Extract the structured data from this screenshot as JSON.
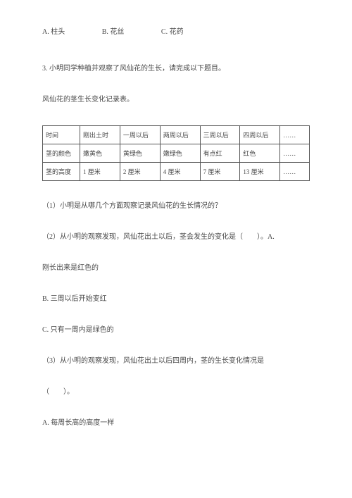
{
  "q2_options": {
    "a": "A. 柱头",
    "b": "B. 花丝",
    "c": "C. 花药"
  },
  "q3": {
    "intro": "3. 小明同学种植并观察了风仙花的生长，请完成以下题目。",
    "table_caption": "风仙花的茎生长变化记录表。",
    "table": {
      "headers": [
        "时间",
        "刚出土时",
        "一周以后",
        "两周以后",
        "三周以后",
        "四周以后",
        "……"
      ],
      "rows": [
        [
          "茎的颜色",
          "嫩黄色",
          "黄绿色",
          "嫩绿色",
          "有点红",
          "红色",
          "……"
        ],
        [
          "茎的高度",
          "1 厘米",
          "2 厘米",
          "4 厘米",
          "7 厘米",
          "13 厘米",
          "……"
        ]
      ]
    },
    "sub1": "（1）小明是从哪几个方面观察记录风仙花的生长情况的？",
    "sub2_line1": "（2）从小明的观察发现，风仙花出土以后，茎会发生的变化是（　　）。A.",
    "sub2_line2": "刚长出来是红色的",
    "sub2_optB": "B. 三周以后开始变红",
    "sub2_optC": "C. 只有一周内是绿色的",
    "sub3_line1": "（3）从小明的观察发现，风仙花出土以后四周内，茎的生长变化情况是",
    "sub3_line2": "（　　）。",
    "sub3_optA": "A. 每周长高的高度一样"
  }
}
